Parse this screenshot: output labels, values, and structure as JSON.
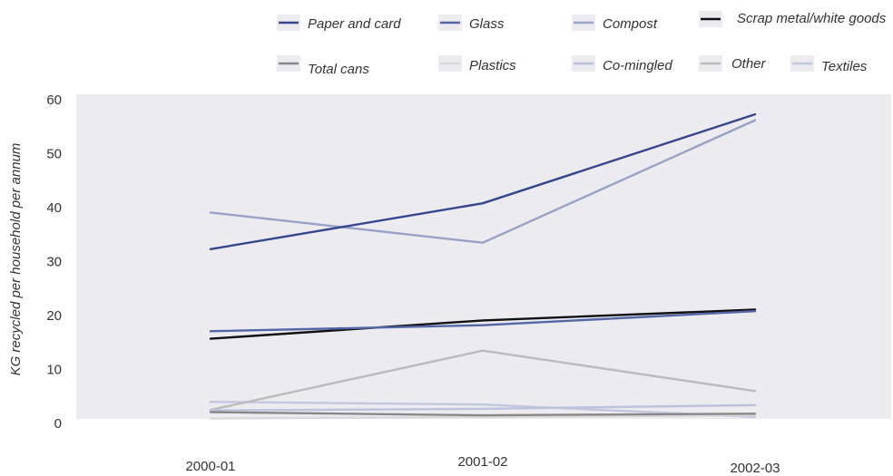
{
  "chart_data": {
    "type": "line",
    "title": "",
    "xlabel": "",
    "ylabel": "KG recycled per household per annum",
    "categories": [
      "2000-01",
      "2001-02",
      "2002-03"
    ],
    "ylim": [
      0,
      60
    ],
    "yticks": [
      0,
      10,
      20,
      30,
      40,
      50,
      60
    ],
    "grid": false,
    "legend_position": "top",
    "background": "#ebebf0",
    "series": [
      {
        "name": "Paper and card",
        "color": "#34468e",
        "width": 2.4,
        "values": [
          32.3,
          40.8,
          57.3
        ]
      },
      {
        "name": "Glass",
        "color": "#5566a8",
        "width": 2.4,
        "values": [
          17.1,
          18.2,
          20.8
        ]
      },
      {
        "name": "Compost",
        "color": "#98a1c6",
        "width": 2.4,
        "values": [
          39.1,
          33.5,
          56.2
        ]
      },
      {
        "name": "Scrap metal/white goods",
        "color": "#111111",
        "width": 2.4,
        "values": [
          15.7,
          19.1,
          21.1
        ]
      },
      {
        "name": "Total cans",
        "color": "#888888",
        "width": 2.4,
        "values": [
          2.1,
          1.5,
          1.8
        ]
      },
      {
        "name": "Plastics",
        "color": "#d9d9dd",
        "width": 2.4,
        "values": [
          0.9,
          1.2,
          1.5
        ]
      },
      {
        "name": "Co-mingled",
        "color": "#bcc2dc",
        "width": 2.4,
        "values": [
          2.4,
          2.7,
          3.4
        ]
      },
      {
        "name": "Other",
        "color": "#bbbbbb",
        "width": 2.4,
        "values": [
          2.5,
          13.5,
          6.0
        ]
      },
      {
        "name": "Textiles",
        "color": "#c3c7dc",
        "width": 2.4,
        "values": [
          4.0,
          3.5,
          1.2
        ]
      }
    ]
  }
}
